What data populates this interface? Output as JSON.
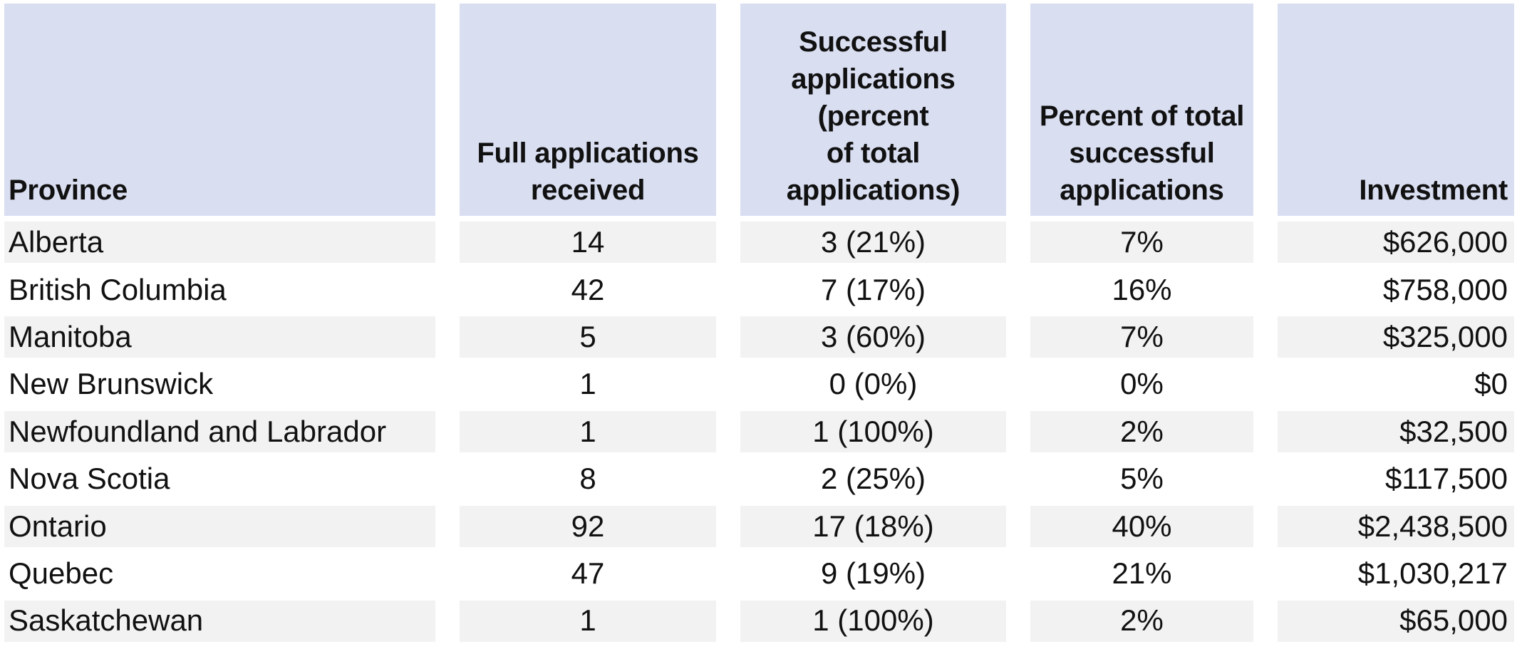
{
  "colors": {
    "header_bg": "#d9def1",
    "row_alt_bg": "#f2f2f2",
    "row_bg": "#ffffff",
    "text": "#111111"
  },
  "table": {
    "headers": [
      {
        "label": "Province"
      },
      {
        "label": "Full applications\nreceived"
      },
      {
        "label": "Successful\napplications (percent\nof total applications)"
      },
      {
        "label": "Percent of total\nsuccessful\napplications"
      },
      {
        "label": "Investment"
      }
    ],
    "rows": [
      {
        "province": "Alberta",
        "full_applications": "14",
        "successful": "3 (21%)",
        "percent_total": "7%",
        "investment": "$626,000"
      },
      {
        "province": "British Columbia",
        "full_applications": "42",
        "successful": "7 (17%)",
        "percent_total": "16%",
        "investment": "$758,000"
      },
      {
        "province": "Manitoba",
        "full_applications": "5",
        "successful": "3 (60%)",
        "percent_total": "7%",
        "investment": "$325,000"
      },
      {
        "province": "New Brunswick",
        "full_applications": "1",
        "successful": "0 (0%)",
        "percent_total": "0%",
        "investment": "$0"
      },
      {
        "province": "Newfoundland and Labrador",
        "full_applications": "1",
        "successful": "1 (100%)",
        "percent_total": "2%",
        "investment": "$32,500"
      },
      {
        "province": "Nova Scotia",
        "full_applications": "8",
        "successful": "2 (25%)",
        "percent_total": "5%",
        "investment": "$117,500"
      },
      {
        "province": "Ontario",
        "full_applications": "92",
        "successful": "17 (18%)",
        "percent_total": "40%",
        "investment": "$2,438,500"
      },
      {
        "province": "Quebec",
        "full_applications": "47",
        "successful": "9 (19%)",
        "percent_total": "21%",
        "investment": "$1,030,217"
      },
      {
        "province": "Saskatchewan",
        "full_applications": "1",
        "successful": "1 (100%)",
        "percent_total": "2%",
        "investment": "$65,000"
      }
    ]
  },
  "chart_data": {
    "type": "table",
    "title": "",
    "columns": [
      "Province",
      "Full applications received",
      "Successful applications (percent of total applications)",
      "Percent of total successful applications",
      "Investment"
    ],
    "rows": [
      [
        "Alberta",
        14,
        "3 (21%)",
        "7%",
        "$626,000"
      ],
      [
        "British Columbia",
        42,
        "7 (17%)",
        "16%",
        "$758,000"
      ],
      [
        "Manitoba",
        5,
        "3 (60%)",
        "7%",
        "$325,000"
      ],
      [
        "New Brunswick",
        1,
        "0 (0%)",
        "0%",
        "$0"
      ],
      [
        "Newfoundland and Labrador",
        1,
        "1 (100%)",
        "2%",
        "$32,500"
      ],
      [
        "Nova Scotia",
        8,
        "2 (25%)",
        "5%",
        "$117,500"
      ],
      [
        "Ontario",
        92,
        "17 (18%)",
        "40%",
        "$2,438,500"
      ],
      [
        "Quebec",
        47,
        "9 (19%)",
        "21%",
        "$1,030,217"
      ],
      [
        "Saskatchewan",
        1,
        "1 (100%)",
        "2%",
        "$65,000"
      ]
    ],
    "layout": {
      "zebra_striping": true,
      "header_position": "top",
      "numeric_columns_alignment": {
        "full_applications": "center",
        "successful": "center",
        "percent_total": "center",
        "investment": "right"
      }
    }
  }
}
